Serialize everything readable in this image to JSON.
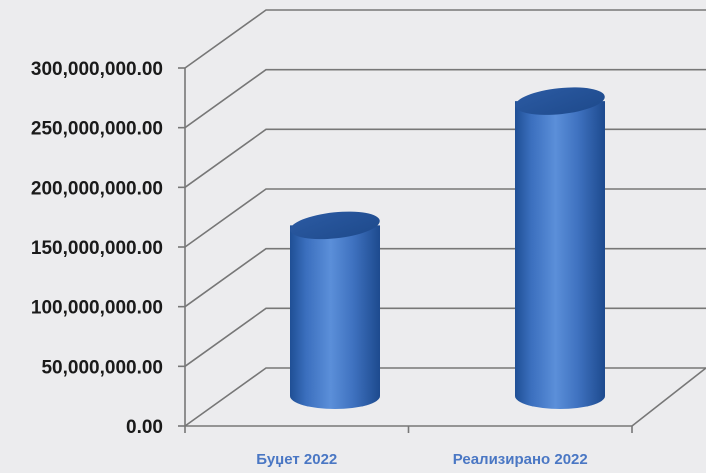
{
  "chart_data": {
    "type": "bar",
    "style": "3d-cylinder",
    "categories": [
      "Буџет 2022",
      "Реализирано 2022"
    ],
    "values": [
      158000000,
      273000000
    ],
    "ylim": [
      0,
      300000000
    ],
    "yticks": [
      0,
      50000000,
      100000000,
      150000000,
      200000000,
      250000000,
      300000000
    ],
    "ytick_labels": [
      "0.00",
      "50,000,000.00",
      "100,000,000.00",
      "150,000,000.00",
      "200,000,000.00",
      "250,000,000.00",
      "300,000,000.00"
    ],
    "grid": true,
    "legend": "none",
    "colors": {
      "bar": "#3f6fb5",
      "bar_top": "#2c5aa0",
      "category_label": "#4a77c4",
      "gridline": "#777777",
      "background": "#ececee"
    }
  }
}
